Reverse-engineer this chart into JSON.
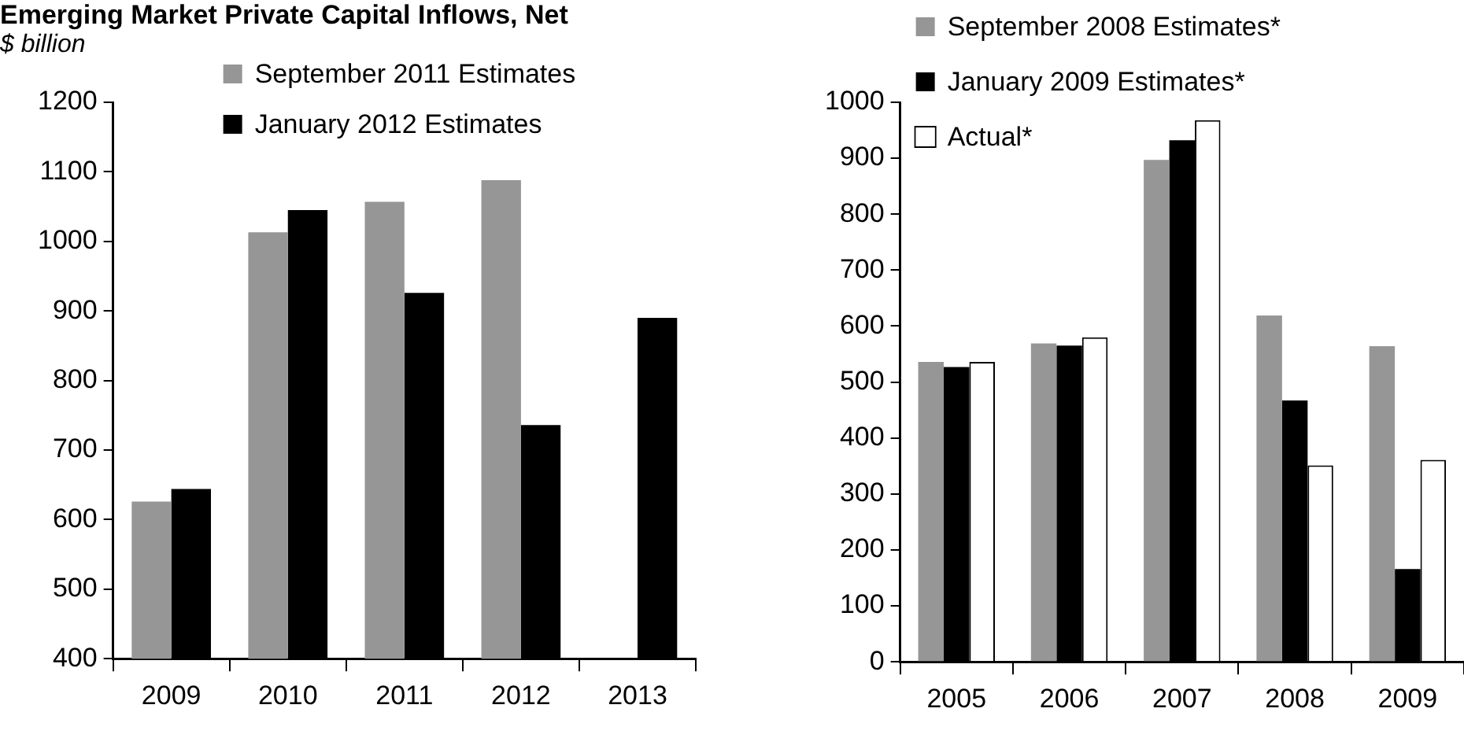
{
  "chart_data": [
    {
      "type": "bar",
      "title": "Emerging Market Private Capital Inflows, Net",
      "subtitle": "$ billion",
      "categories": [
        "2009",
        "2010",
        "2011",
        "2012",
        "2013"
      ],
      "series": [
        {
          "name": "September 2011 Estimates",
          "color": "#969696",
          "values": [
            626,
            1013,
            1057,
            1088,
            null
          ]
        },
        {
          "name": "January 2012 Estimates",
          "color": "#000000",
          "values": [
            644,
            1045,
            926,
            736,
            890
          ]
        }
      ],
      "ylim": [
        400,
        1200
      ],
      "yticks": [
        400,
        500,
        600,
        700,
        800,
        900,
        1000,
        1100,
        1200
      ],
      "legend": "top"
    },
    {
      "type": "bar",
      "categories": [
        "2005",
        "2006",
        "2007",
        "2008",
        "2009"
      ],
      "series": [
        {
          "name": "September 2008 Estimates*",
          "color": "#969696",
          "values": [
            536,
            569,
            897,
            619,
            564
          ]
        },
        {
          "name": "January 2009 Estimates*",
          "color": "#000000",
          "values": [
            527,
            565,
            932,
            467,
            166
          ]
        },
        {
          "name": "Actual*",
          "color": "#ffffff",
          "values": [
            536,
            580,
            968,
            351,
            361
          ]
        }
      ],
      "ylim": [
        0,
        1000
      ],
      "yticks": [
        0,
        100,
        200,
        300,
        400,
        500,
        600,
        700,
        800,
        900,
        1000
      ],
      "legend": "top left"
    }
  ]
}
